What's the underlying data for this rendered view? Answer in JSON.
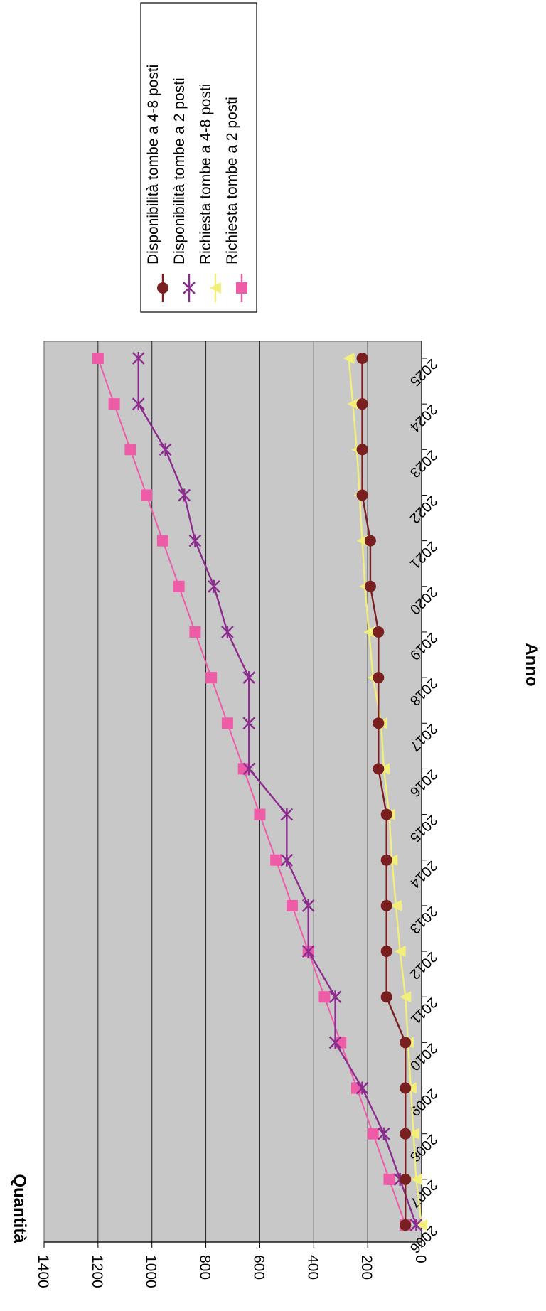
{
  "chart_data": {
    "type": "line",
    "orientation": "rotated-90-clockwise",
    "xlabel": "Anno",
    "ylabel": "Quantità",
    "x": [
      "2006",
      "2007",
      "2008",
      "2009",
      "2010",
      "2011",
      "2012",
      "2013",
      "2014",
      "2015",
      "2016",
      "2017",
      "2018",
      "2019",
      "2020",
      "2021",
      "2022",
      "2023",
      "2024",
      "2025"
    ],
    "ylim": [
      0,
      1400
    ],
    "yticks": [
      0,
      200,
      400,
      600,
      800,
      1000,
      1200,
      1400
    ],
    "grid": true,
    "legend_position": "right",
    "series": [
      {
        "name": "Richiesta tombe a 2 posti",
        "color": "#ee5ca8",
        "marker": "square",
        "values": [
          60,
          120,
          180,
          240,
          300,
          360,
          420,
          480,
          540,
          600,
          660,
          720,
          780,
          840,
          900,
          960,
          1020,
          1080,
          1140,
          1200
        ]
      },
      {
        "name": "Richiesta tombe a 4-8 posti",
        "color": "#f2f07a",
        "marker": "triangle",
        "values": [
          0,
          20,
          30,
          40,
          50,
          60,
          80,
          95,
          110,
          120,
          140,
          150,
          180,
          195,
          210,
          220,
          230,
          240,
          255,
          270
        ]
      },
      {
        "name": "Disponibilità tombe a 2 posti",
        "color": "#8b2c8e",
        "marker": "star",
        "values": [
          20,
          80,
          140,
          220,
          320,
          320,
          420,
          420,
          500,
          500,
          640,
          640,
          640,
          720,
          770,
          840,
          880,
          950,
          1050,
          1050
        ]
      },
      {
        "name": "Disponibilità tombe a 4-8 posti",
        "color": "#7a1f1f",
        "marker": "circle",
        "values": [
          60,
          60,
          60,
          60,
          60,
          130,
          130,
          130,
          130,
          130,
          160,
          160,
          160,
          160,
          190,
          190,
          220,
          220,
          220,
          220
        ]
      }
    ]
  }
}
